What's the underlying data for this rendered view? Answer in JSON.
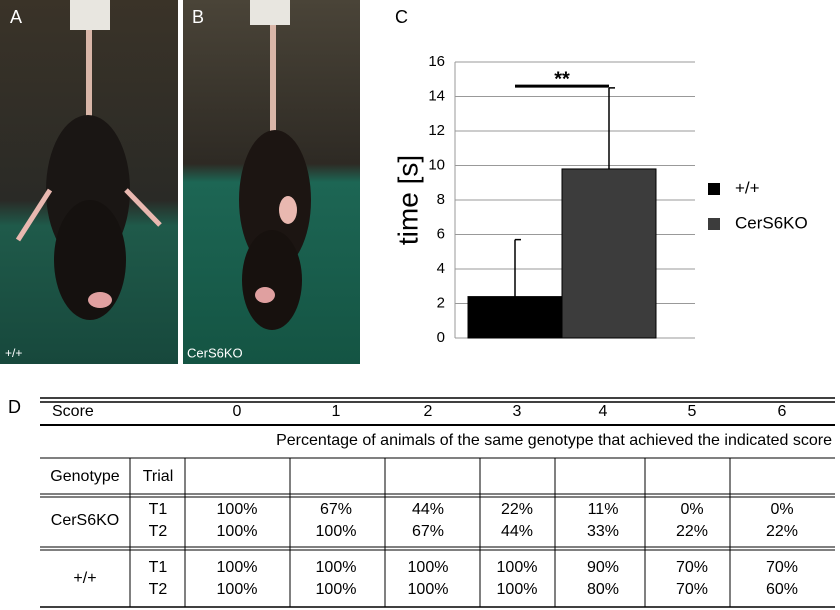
{
  "panels": {
    "a": {
      "letter": "A",
      "genotype": "+/+"
    },
    "b": {
      "letter": "B",
      "genotype": "CerS6KO"
    },
    "c": {
      "letter": "C"
    },
    "d": {
      "letter": "D"
    }
  },
  "chart_data": {
    "type": "bar",
    "ylabel": "time [s]",
    "series": [
      {
        "name": "+/+",
        "color": "#000000",
        "values": [
          2.4
        ],
        "errors": [
          3.3
        ]
      },
      {
        "name": "CerS6KO",
        "color": "#3c3c3c",
        "values": [
          9.8
        ],
        "errors": [
          4.7
        ]
      }
    ],
    "ylim": [
      0,
      16
    ],
    "yticks": [
      0,
      2,
      4,
      6,
      8,
      10,
      12,
      14,
      16
    ],
    "grid": true,
    "annotation": {
      "text": "**",
      "y": 14.6
    }
  },
  "table": {
    "score_label": "Score",
    "scores": [
      0,
      1,
      2,
      3,
      4,
      5,
      6
    ],
    "caption": "Percentage of animals of the same genotype that achieved the indicated score",
    "genotype_label": "Genotype",
    "trial_label": "Trial",
    "rows": [
      {
        "genotype": "CerS6KO",
        "trials": [
          "T1",
          "T2"
        ],
        "values": [
          [
            "100%",
            "67%",
            "44%",
            "22%",
            "11%",
            "0%",
            "0%"
          ],
          [
            "100%",
            "100%",
            "67%",
            "44%",
            "33%",
            "22%",
            "22%"
          ]
        ]
      },
      {
        "genotype": "+/+",
        "trials": [
          "T1",
          "T2"
        ],
        "values": [
          [
            "100%",
            "100%",
            "100%",
            "100%",
            "90%",
            "70%",
            "70%"
          ],
          [
            "100%",
            "100%",
            "100%",
            "100%",
            "80%",
            "70%",
            "60%"
          ]
        ]
      }
    ]
  }
}
